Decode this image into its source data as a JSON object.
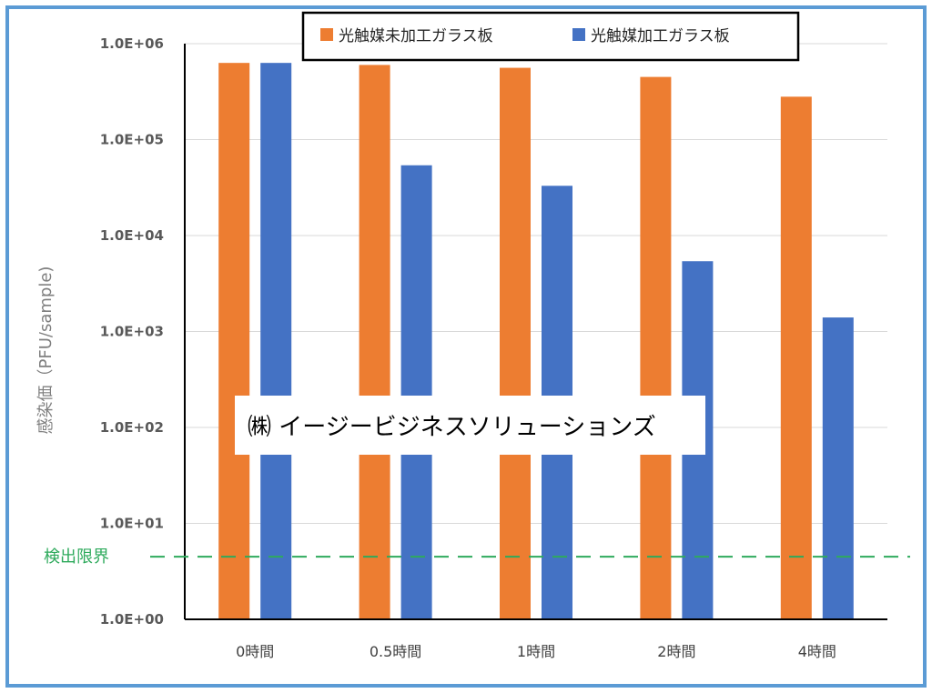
{
  "chart_data": {
    "type": "bar",
    "ylabel": "感染価（PFU/sample)",
    "y_scale": "log",
    "ylim": [
      1,
      1000000
    ],
    "y_ticks": [
      "1.0E+00",
      "1.0E+01",
      "1.0E+02",
      "1.0E+03",
      "1.0E+04",
      "1.0E+05",
      "1.0E+06"
    ],
    "grid": true,
    "legend_position": "top-right",
    "categories": [
      "0時間",
      "0.5時間",
      "1時間",
      "2時間",
      "4時間"
    ],
    "series": [
      {
        "name": "光触媒未加工ガラス板",
        "values": [
          630000,
          600000,
          560000,
          450000,
          280000
        ]
      },
      {
        "name": "光触媒加工ガラス板",
        "values": [
          630000,
          54000,
          33000,
          5400,
          1400
        ]
      }
    ],
    "detection_limit": {
      "label": "検出限界",
      "value": 4.5
    }
  },
  "colors": {
    "series": [
      "#ed7d31",
      "#4472c4"
    ],
    "detection_line": "#2eaa5c",
    "frame": "#5b9bd5"
  },
  "watermark": "㈱ イージービジネスソリューションズ"
}
